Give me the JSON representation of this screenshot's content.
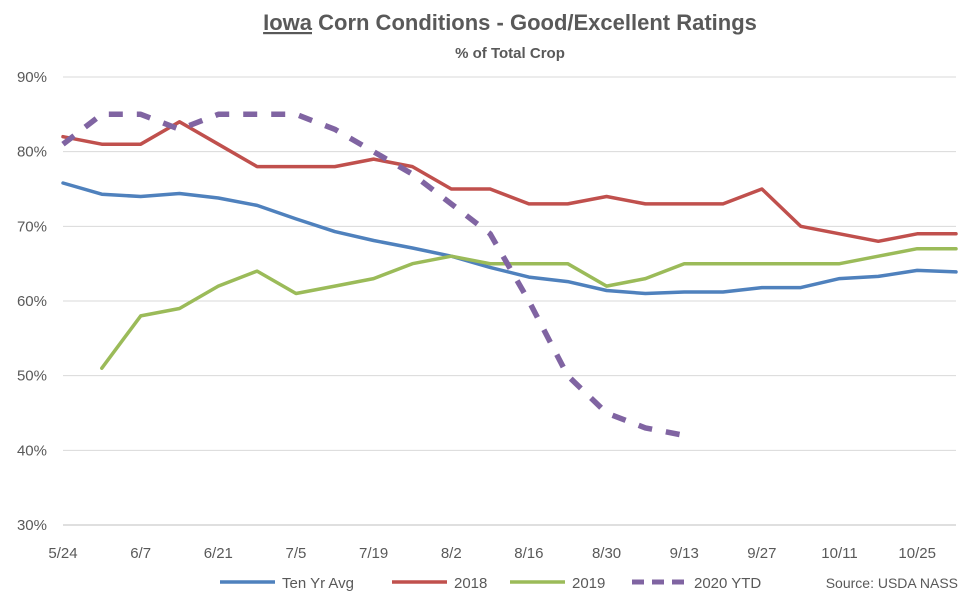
{
  "title": {
    "underlined": "Iowa",
    "rest": " Corn Conditions - Good/Excellent Ratings",
    "subtitle": "% of Total Crop"
  },
  "source": "Source: USDA NASS",
  "colors": {
    "ten_yr_avg": "#4f81bd",
    "y2018": "#c0504d",
    "y2019": "#9bbb59",
    "y2020": "#8064a2",
    "grid": "#d9d9d9",
    "text": "#595959"
  },
  "chart_data": {
    "type": "line",
    "title": "Iowa Corn Conditions - Good/Excellent Ratings",
    "subtitle": "% of Total Crop",
    "x_tick_labels": [
      "5/24",
      "6/7",
      "6/21",
      "7/5",
      "7/19",
      "8/2",
      "8/16",
      "8/30",
      "9/13",
      "9/27",
      "10/11",
      "10/25"
    ],
    "x_range_weeks": [
      0,
      23
    ],
    "y_tick_labels": [
      "30%",
      "40%",
      "50%",
      "60%",
      "70%",
      "80%",
      "90%"
    ],
    "ylim": [
      30,
      90
    ],
    "grid": "horizontal",
    "legend_position": "bottom",
    "series": [
      {
        "name": "Ten Yr Avg",
        "style": "solid",
        "x": [
          0,
          1,
          2,
          3,
          4,
          5,
          6,
          7,
          8,
          9,
          10,
          11,
          12,
          13,
          14,
          15,
          16,
          17,
          18,
          19,
          20,
          21,
          22,
          23
        ],
        "values": [
          75.8,
          74.3,
          74,
          74.4,
          73.8,
          72.8,
          71,
          69.3,
          68.1,
          67.1,
          66,
          64.5,
          63.2,
          62.6,
          61.4,
          61,
          61.2,
          61.2,
          61.8,
          61.8,
          63,
          63.3,
          64.1,
          63.9
        ]
      },
      {
        "name": "2018",
        "style": "solid",
        "x": [
          0,
          1,
          2,
          3,
          4,
          5,
          6,
          7,
          8,
          9,
          10,
          11,
          12,
          13,
          14,
          15,
          16,
          17,
          18,
          19,
          20,
          21,
          22,
          23
        ],
        "values": [
          82,
          81,
          81,
          84,
          81,
          78,
          78,
          78,
          79,
          78,
          75,
          75,
          73,
          73,
          74,
          73,
          73,
          73,
          75,
          70,
          69,
          68,
          69,
          69
        ]
      },
      {
        "name": "2019",
        "style": "solid",
        "x": [
          1,
          2,
          3,
          4,
          5,
          6,
          7,
          8,
          9,
          10,
          11,
          12,
          13,
          14,
          15,
          16,
          17,
          18,
          19,
          20,
          21,
          22,
          23
        ],
        "values": [
          51,
          58,
          59,
          62,
          64,
          61,
          62,
          63,
          65,
          66,
          65,
          65,
          65,
          62,
          63,
          65,
          65,
          65,
          65,
          65,
          66,
          67,
          67
        ]
      },
      {
        "name": "2020 YTD",
        "style": "dashed",
        "x": [
          0,
          1,
          2,
          3,
          4,
          5,
          6,
          7,
          8,
          9,
          10,
          11,
          12,
          13,
          14,
          15,
          16
        ],
        "values": [
          81,
          85,
          85,
          83,
          85,
          85,
          85,
          83,
          80,
          77,
          73,
          69,
          60,
          50,
          45,
          43,
          42
        ]
      }
    ]
  }
}
